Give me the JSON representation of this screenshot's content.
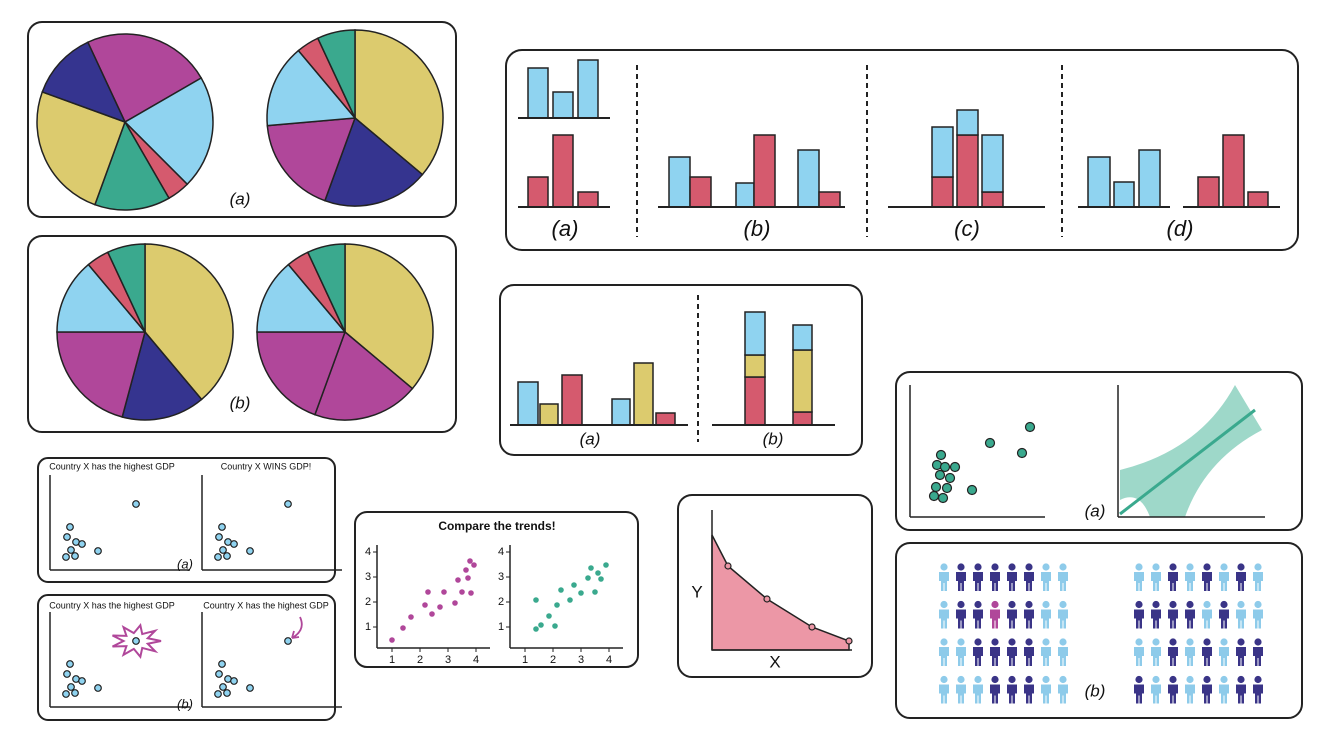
{
  "pie_panels": [
    {
      "label": "(a)"
    },
    {
      "label": "(b)"
    }
  ],
  "bar_panel": {
    "labels": [
      "(a)",
      "(b)",
      "(c)",
      "(d)"
    ]
  },
  "stack_panel": {
    "labels": [
      "(a)",
      "(b)"
    ]
  },
  "gdp_panels": [
    {
      "titles": [
        "Country X has the highest GDP",
        "Country X WINS GDP!"
      ],
      "label": "(a)"
    },
    {
      "titles": [
        "Country X has the highest GDP",
        "Country X has the highest GDP"
      ],
      "label": "(b)"
    }
  ],
  "trends": {
    "title": "Compare the trends!",
    "xticks": [
      1,
      2,
      3,
      4
    ],
    "yticks": [
      1,
      2,
      3,
      4
    ]
  },
  "area": {
    "y_label": "Y",
    "x_label": "X"
  },
  "uncertainty": {
    "label": "(a)"
  },
  "icons": {
    "label": "(b)"
  }
}
